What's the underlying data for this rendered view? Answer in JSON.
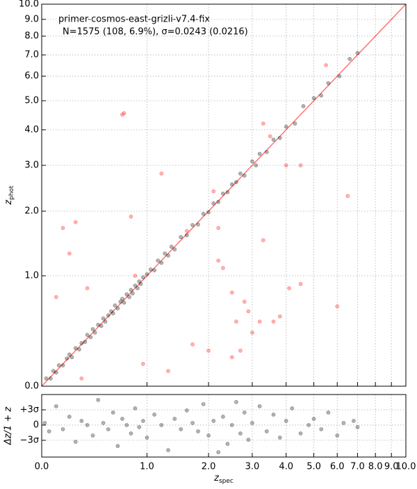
{
  "chart_data": [
    {
      "type": "scatter",
      "annotations": [
        "primer-cosmos-east-grizli-v7.4-fix",
        "N=1575 (108,  6.9%), σ=0.0243 (0.0216)"
      ],
      "ylabel": "z",
      "ylabel_sub": "phot",
      "xscale": "log1p",
      "yscale": "log1p",
      "xlim": [
        0,
        10
      ],
      "ylim": [
        0,
        10
      ],
      "yticks": [
        {
          "value": 0,
          "label": "0.0"
        },
        {
          "value": 1,
          "label": "1.0"
        },
        {
          "value": 2,
          "label": "2.0"
        },
        {
          "value": 3,
          "label": "3.0"
        },
        {
          "value": 4,
          "label": "4.0"
        },
        {
          "value": 5,
          "label": "5.0"
        },
        {
          "value": 6,
          "label": "6.0"
        },
        {
          "value": 7,
          "label": "7.0"
        },
        {
          "value": 8,
          "label": "8.0"
        },
        {
          "value": 9,
          "label": "9.0"
        },
        {
          "value": 10,
          "label": "10.0"
        }
      ],
      "grid": true,
      "series": [
        {
          "color": "#000000",
          "x": [
            0.03,
            0.06,
            0.08,
            0.1,
            0.12,
            0.15,
            0.18,
            0.2,
            0.22,
            0.25,
            0.28,
            0.3,
            0.33,
            0.35,
            0.38,
            0.4,
            0.42,
            0.45,
            0.48,
            0.5,
            0.52,
            0.55,
            0.58,
            0.6,
            0.62,
            0.65,
            0.68,
            0.7,
            0.72,
            0.75,
            0.78,
            0.8,
            0.82,
            0.85,
            0.88,
            0.9,
            0.92,
            0.95,
            1.0,
            1.05,
            1.1,
            1.15,
            1.2,
            1.25,
            1.3,
            1.35,
            1.4,
            1.5,
            1.6,
            1.7,
            1.8,
            1.9,
            2.0,
            2.1,
            2.2,
            2.3,
            2.4,
            2.5,
            2.6,
            2.7,
            2.8,
            3.0,
            3.1,
            3.2,
            3.4,
            3.6,
            3.8,
            4.0,
            4.3,
            4.6,
            5.0,
            5.3,
            5.6,
            6.1,
            6.6,
            7.0
          ],
          "values": [
            0.05,
            0.05,
            0.1,
            0.09,
            0.14,
            0.14,
            0.19,
            0.22,
            0.2,
            0.27,
            0.26,
            0.31,
            0.32,
            0.38,
            0.36,
            0.43,
            0.4,
            0.47,
            0.46,
            0.53,
            0.5,
            0.56,
            0.6,
            0.58,
            0.66,
            0.63,
            0.7,
            0.73,
            0.69,
            0.78,
            0.75,
            0.83,
            0.79,
            0.88,
            0.85,
            0.93,
            0.9,
            0.98,
            1.02,
            1.08,
            1.07,
            1.2,
            1.17,
            1.3,
            1.27,
            1.4,
            1.36,
            1.55,
            1.58,
            1.75,
            1.76,
            1.95,
            1.98,
            2.15,
            2.18,
            2.35,
            2.38,
            2.55,
            2.6,
            2.8,
            2.75,
            3.1,
            3.0,
            3.3,
            3.35,
            3.7,
            3.75,
            4.1,
            4.2,
            4.8,
            5.1,
            5.2,
            5.7,
            6.0,
            6.8,
            7.1
          ]
        },
        {
          "color": "#ff0000",
          "x": [
            0.1,
            0.15,
            0.2,
            0.25,
            0.35,
            0.7,
            0.72,
            0.8,
            0.85,
            0.95,
            1.2,
            1.3,
            1.6,
            1.7,
            2.0,
            2.1,
            2.2,
            2.3,
            2.5,
            2.5,
            2.6,
            2.7,
            2.8,
            2.9,
            3.0,
            3.2,
            3.3,
            3.3,
            3.5,
            3.6,
            3.8,
            4.0,
            4.1,
            4.5,
            4.5,
            5.5,
            6.0,
            6.5,
            2.2,
            0.3
          ],
          "values": [
            0.75,
            1.7,
            1.3,
            1.8,
            0.85,
            4.5,
            4.55,
            1.9,
            1.0,
            0.15,
            2.8,
            0.1,
            1.65,
            0.3,
            0.25,
            2.4,
            1.2,
            1.1,
            0.8,
            0.2,
            0.5,
            0.25,
            0.7,
            0.6,
            0.4,
            0.5,
            1.5,
            4.2,
            3.8,
            0.5,
            0.55,
            3.0,
            0.85,
            3.0,
            0.9,
            6.5,
            0.65,
            2.3,
            1.7,
            0.05
          ]
        }
      ]
    },
    {
      "type": "scatter",
      "xlabel": "z",
      "xlabel_sub": "spec",
      "ylabel": "Δz/1 + z",
      "xscale": "log1p",
      "xlim": [
        0,
        10
      ],
      "ylim": [
        -0.153,
        0.146
      ],
      "xticks": [
        {
          "value": 0,
          "label": "0.0"
        },
        {
          "value": 1,
          "label": "1.0"
        },
        {
          "value": 2,
          "label": "2.0"
        },
        {
          "value": 3,
          "label": "3.0"
        },
        {
          "value": 4,
          "label": "4.0"
        },
        {
          "value": 5,
          "label": "5.0"
        },
        {
          "value": 6,
          "label": "6.0"
        },
        {
          "value": 7,
          "label": "7.0"
        },
        {
          "value": 8,
          "label": "8.0"
        },
        {
          "value": 9,
          "label": "9.0"
        },
        {
          "value": 10,
          "label": "10.0"
        }
      ],
      "yticks": [
        {
          "value": 0.0729,
          "label": "+3σ"
        },
        0,
        {
          "value": -0.0729,
          "label": "−3σ"
        }
      ],
      "grid": true,
      "series": [
        {
          "color": "#000000",
          "x": [
            0.02,
            0.05,
            0.1,
            0.15,
            0.2,
            0.25,
            0.3,
            0.35,
            0.4,
            0.45,
            0.5,
            0.55,
            0.6,
            0.65,
            0.7,
            0.75,
            0.8,
            0.85,
            0.9,
            0.95,
            1.0,
            1.1,
            1.2,
            1.3,
            1.4,
            1.5,
            1.6,
            1.7,
            1.8,
            1.9,
            2.0,
            2.1,
            2.2,
            2.3,
            2.4,
            2.5,
            2.6,
            2.7,
            2.8,
            2.9,
            3.0,
            3.2,
            3.4,
            3.6,
            3.8,
            4.0,
            4.2,
            4.5,
            4.8,
            5.0,
            5.3,
            5.6,
            6.0,
            6.3,
            6.8,
            7.0
          ],
          "values": [
            0.01,
            -0.03,
            0.09,
            -0.02,
            0.04,
            -0.08,
            0.02,
            0.0,
            -0.05,
            0.12,
            0.01,
            -0.02,
            0.06,
            -0.1,
            0.03,
            0.0,
            -0.04,
            0.08,
            -0.01,
            0.02,
            -0.06,
            0.05,
            0.0,
            -0.12,
            0.03,
            -0.02,
            0.07,
            0.01,
            -0.03,
            0.1,
            -0.05,
            0.02,
            -0.13,
            0.04,
            -0.09,
            0.0,
            0.11,
            -0.04,
            0.06,
            -0.07,
            0.01,
            0.09,
            -0.03,
            0.05,
            -0.06,
            0.02,
            0.08,
            -0.04,
            0.0,
            0.03,
            -0.02,
            0.06,
            -0.05,
            0.01,
            0.02,
            -0.01
          ]
        }
      ]
    }
  ]
}
